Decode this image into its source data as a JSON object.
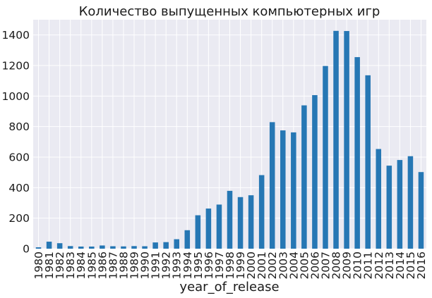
{
  "chart_data": {
    "type": "bar",
    "title": "Количество выпущенных компьютерных игр",
    "xlabel": "year_of_release",
    "ylabel": "",
    "ylim": [
      0,
      1500
    ],
    "yticks": [
      0,
      200,
      400,
      600,
      800,
      1000,
      1200,
      1400
    ],
    "grid": true,
    "categories": [
      "1980",
      "1981",
      "1982",
      "1983",
      "1984",
      "1985",
      "1986",
      "1987",
      "1988",
      "1989",
      "1990",
      "1991",
      "1992",
      "1993",
      "1994",
      "1995",
      "1996",
      "1997",
      "1998",
      "1999",
      "2000",
      "2001",
      "2002",
      "2003",
      "2004",
      "2005",
      "2006",
      "2007",
      "2008",
      "2009",
      "2010",
      "2011",
      "2012",
      "2013",
      "2014",
      "2015",
      "2016"
    ],
    "values": [
      9,
      46,
      36,
      17,
      14,
      14,
      21,
      16,
      15,
      17,
      16,
      41,
      43,
      62,
      121,
      219,
      263,
      289,
      379,
      338,
      350,
      482,
      829,
      775,
      762,
      939,
      1006,
      1197,
      1427,
      1426,
      1255,
      1136,
      653,
      544,
      581,
      606,
      502
    ],
    "colors": {
      "bar": "#2677b4",
      "background": "#eaeaf2",
      "grid": "#ffffff"
    }
  }
}
